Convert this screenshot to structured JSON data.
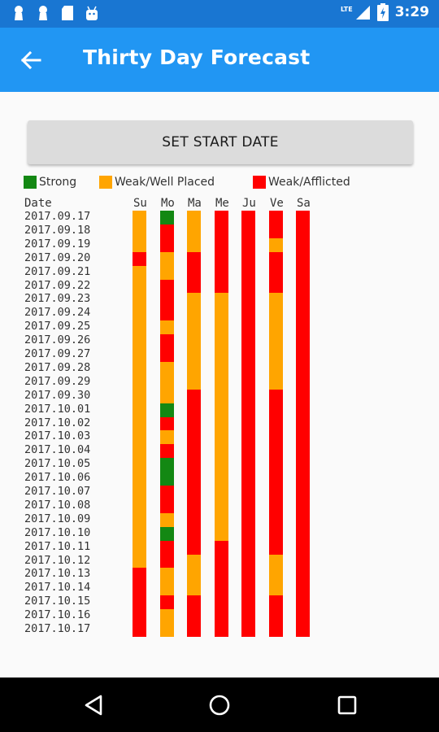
{
  "status_bar": {
    "time": "3:29",
    "network": "LTE",
    "left_icons": [
      "keyhole-icon",
      "keyhole-icon",
      "sd-card-icon",
      "android-icon"
    ]
  },
  "app_bar": {
    "title": "Thirty Day Forecast",
    "back_icon": "arrow-back-icon"
  },
  "start_button": {
    "label": "SET START DATE"
  },
  "legend": [
    {
      "label": "Strong",
      "color": "#138813"
    },
    {
      "label": "Weak/Well Placed",
      "color": "#ffa500"
    },
    {
      "label": "Weak/Afflicted",
      "color": "#ff0000"
    }
  ],
  "forecast": {
    "date_header": "Date",
    "days": [
      "Su",
      "Mo",
      "Ma",
      "Me",
      "Ju",
      "Ve",
      "Sa"
    ],
    "dates": [
      "2017.09.17",
      "2017.09.18",
      "2017.09.19",
      "2017.09.20",
      "2017.09.21",
      "2017.09.22",
      "2017.09.23",
      "2017.09.24",
      "2017.09.25",
      "2017.09.26",
      "2017.09.27",
      "2017.09.28",
      "2017.09.29",
      "2017.09.30",
      "2017.10.01",
      "2017.10.02",
      "2017.10.03",
      "2017.10.04",
      "2017.10.05",
      "2017.10.06",
      "2017.10.07",
      "2017.10.08",
      "2017.10.09",
      "2017.10.10",
      "2017.10.11",
      "2017.10.12",
      "2017.10.13",
      "2017.10.14",
      "2017.10.15",
      "2017.10.16",
      "2017.10.17"
    ],
    "status_colors": {
      "S": "#138813",
      "W": "#ffa500",
      "A": "#ff0000"
    },
    "columns": {
      "Su": [
        "W",
        "W",
        "W",
        "A",
        "W",
        "W",
        "W",
        "W",
        "W",
        "W",
        "W",
        "W",
        "W",
        "W",
        "W",
        "W",
        "W",
        "W",
        "W",
        "W",
        "W",
        "W",
        "W",
        "W",
        "W",
        "W",
        "A",
        "A",
        "A",
        "A",
        "A"
      ],
      "Mo": [
        "S",
        "A",
        "A",
        "W",
        "W",
        "A",
        "A",
        "A",
        "W",
        "A",
        "A",
        "W",
        "W",
        "W",
        "S",
        "A",
        "W",
        "A",
        "S",
        "S",
        "A",
        "A",
        "W",
        "S",
        "A",
        "A",
        "W",
        "W",
        "A",
        "W",
        "W"
      ],
      "Ma": [
        "W",
        "W",
        "W",
        "A",
        "A",
        "A",
        "W",
        "W",
        "W",
        "W",
        "W",
        "W",
        "W",
        "A",
        "A",
        "A",
        "A",
        "A",
        "A",
        "A",
        "A",
        "A",
        "A",
        "A",
        "A",
        "W",
        "W",
        "W",
        "A",
        "A",
        "A"
      ],
      "Me": [
        "A",
        "A",
        "A",
        "A",
        "A",
        "A",
        "W",
        "W",
        "W",
        "W",
        "W",
        "W",
        "W",
        "W",
        "W",
        "W",
        "W",
        "W",
        "W",
        "W",
        "W",
        "W",
        "W",
        "W",
        "A",
        "A",
        "A",
        "A",
        "A",
        "A",
        "A"
      ],
      "Ju": [
        "A",
        "A",
        "A",
        "A",
        "A",
        "A",
        "A",
        "A",
        "A",
        "A",
        "A",
        "A",
        "A",
        "A",
        "A",
        "A",
        "A",
        "A",
        "A",
        "A",
        "A",
        "A",
        "A",
        "A",
        "A",
        "A",
        "A",
        "A",
        "A",
        "A",
        "A"
      ],
      "Ve": [
        "A",
        "A",
        "W",
        "A",
        "A",
        "A",
        "W",
        "W",
        "W",
        "W",
        "W",
        "W",
        "W",
        "A",
        "A",
        "A",
        "A",
        "A",
        "A",
        "A",
        "A",
        "A",
        "A",
        "A",
        "A",
        "W",
        "W",
        "W",
        "A",
        "A",
        "A"
      ],
      "Sa": [
        "A",
        "A",
        "A",
        "A",
        "A",
        "A",
        "A",
        "A",
        "A",
        "A",
        "A",
        "A",
        "A",
        "A",
        "A",
        "A",
        "A",
        "A",
        "A",
        "A",
        "A",
        "A",
        "A",
        "A",
        "A",
        "A",
        "A",
        "A",
        "A",
        "A",
        "A"
      ]
    }
  },
  "nav_bar": {
    "buttons": [
      "back-triangle-icon",
      "home-circle-icon",
      "recents-square-icon"
    ]
  }
}
